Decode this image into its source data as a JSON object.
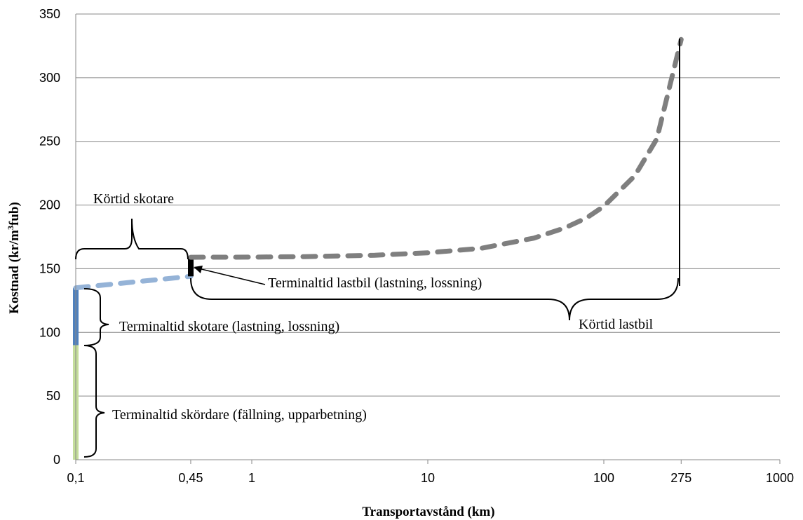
{
  "chart_data": {
    "type": "line",
    "xscale": "log",
    "xlim": [
      0.1,
      1000
    ],
    "ylim": [
      0,
      350
    ],
    "yticks": [
      0,
      50,
      100,
      150,
      200,
      250,
      300,
      350
    ],
    "xticks": [
      {
        "value": 0.1,
        "label": "0,1"
      },
      {
        "value": 0.45,
        "label": "0,45"
      },
      {
        "value": 1,
        "label": "1"
      },
      {
        "value": 10,
        "label": "10"
      },
      {
        "value": 100,
        "label": "100"
      },
      {
        "value": 275,
        "label": "275"
      },
      {
        "value": 1000,
        "label": "1000"
      }
    ],
    "xlabel": "Transportavstånd (km)",
    "ylabel_parts": {
      "before": "Kostnad (kr/m",
      "sup": "3",
      "after": "fub)"
    },
    "grid": true,
    "legend": "none",
    "series": [
      {
        "color": "#c4dd9b",
        "style": "solid",
        "x": [
          0.1,
          0.1
        ],
        "y": [
          0,
          90
        ]
      },
      {
        "color": "#4f81bd",
        "style": "solid",
        "x": [
          0.1,
          0.1
        ],
        "y": [
          90,
          135
        ]
      },
      {
        "color": "#95b3d7",
        "style": "dashed",
        "x": [
          0.1,
          0.45
        ],
        "y": [
          135,
          144
        ]
      },
      {
        "color": "#000000",
        "style": "solid",
        "x": [
          0.45,
          0.45
        ],
        "y": [
          144,
          158
        ]
      },
      {
        "color": "#7f7f7f",
        "style": "dashed",
        "x": [
          0.45,
          1,
          2,
          5,
          10,
          20,
          40,
          60,
          80,
          100,
          150,
          200,
          275
        ],
        "y": [
          159,
          159.1,
          159.5,
          160.6,
          162.5,
          166,
          174,
          182,
          190,
          199,
          223,
          252,
          330
        ]
      }
    ],
    "annotations": [
      {
        "id": "kortid-skotare",
        "text": "Körtid skotare"
      },
      {
        "id": "terminaltid-lastbil",
        "text": "Terminaltid lastbil (lastning, lossning)"
      },
      {
        "id": "terminaltid-skotare",
        "text": "Terminaltid skotare (lastning, lossning)"
      },
      {
        "id": "kortid-lastbil",
        "text": "Körtid lastbil"
      },
      {
        "id": "terminaltid-skordare",
        "text": "Terminaltid skördare (fällning, upparbetning)"
      }
    ]
  }
}
